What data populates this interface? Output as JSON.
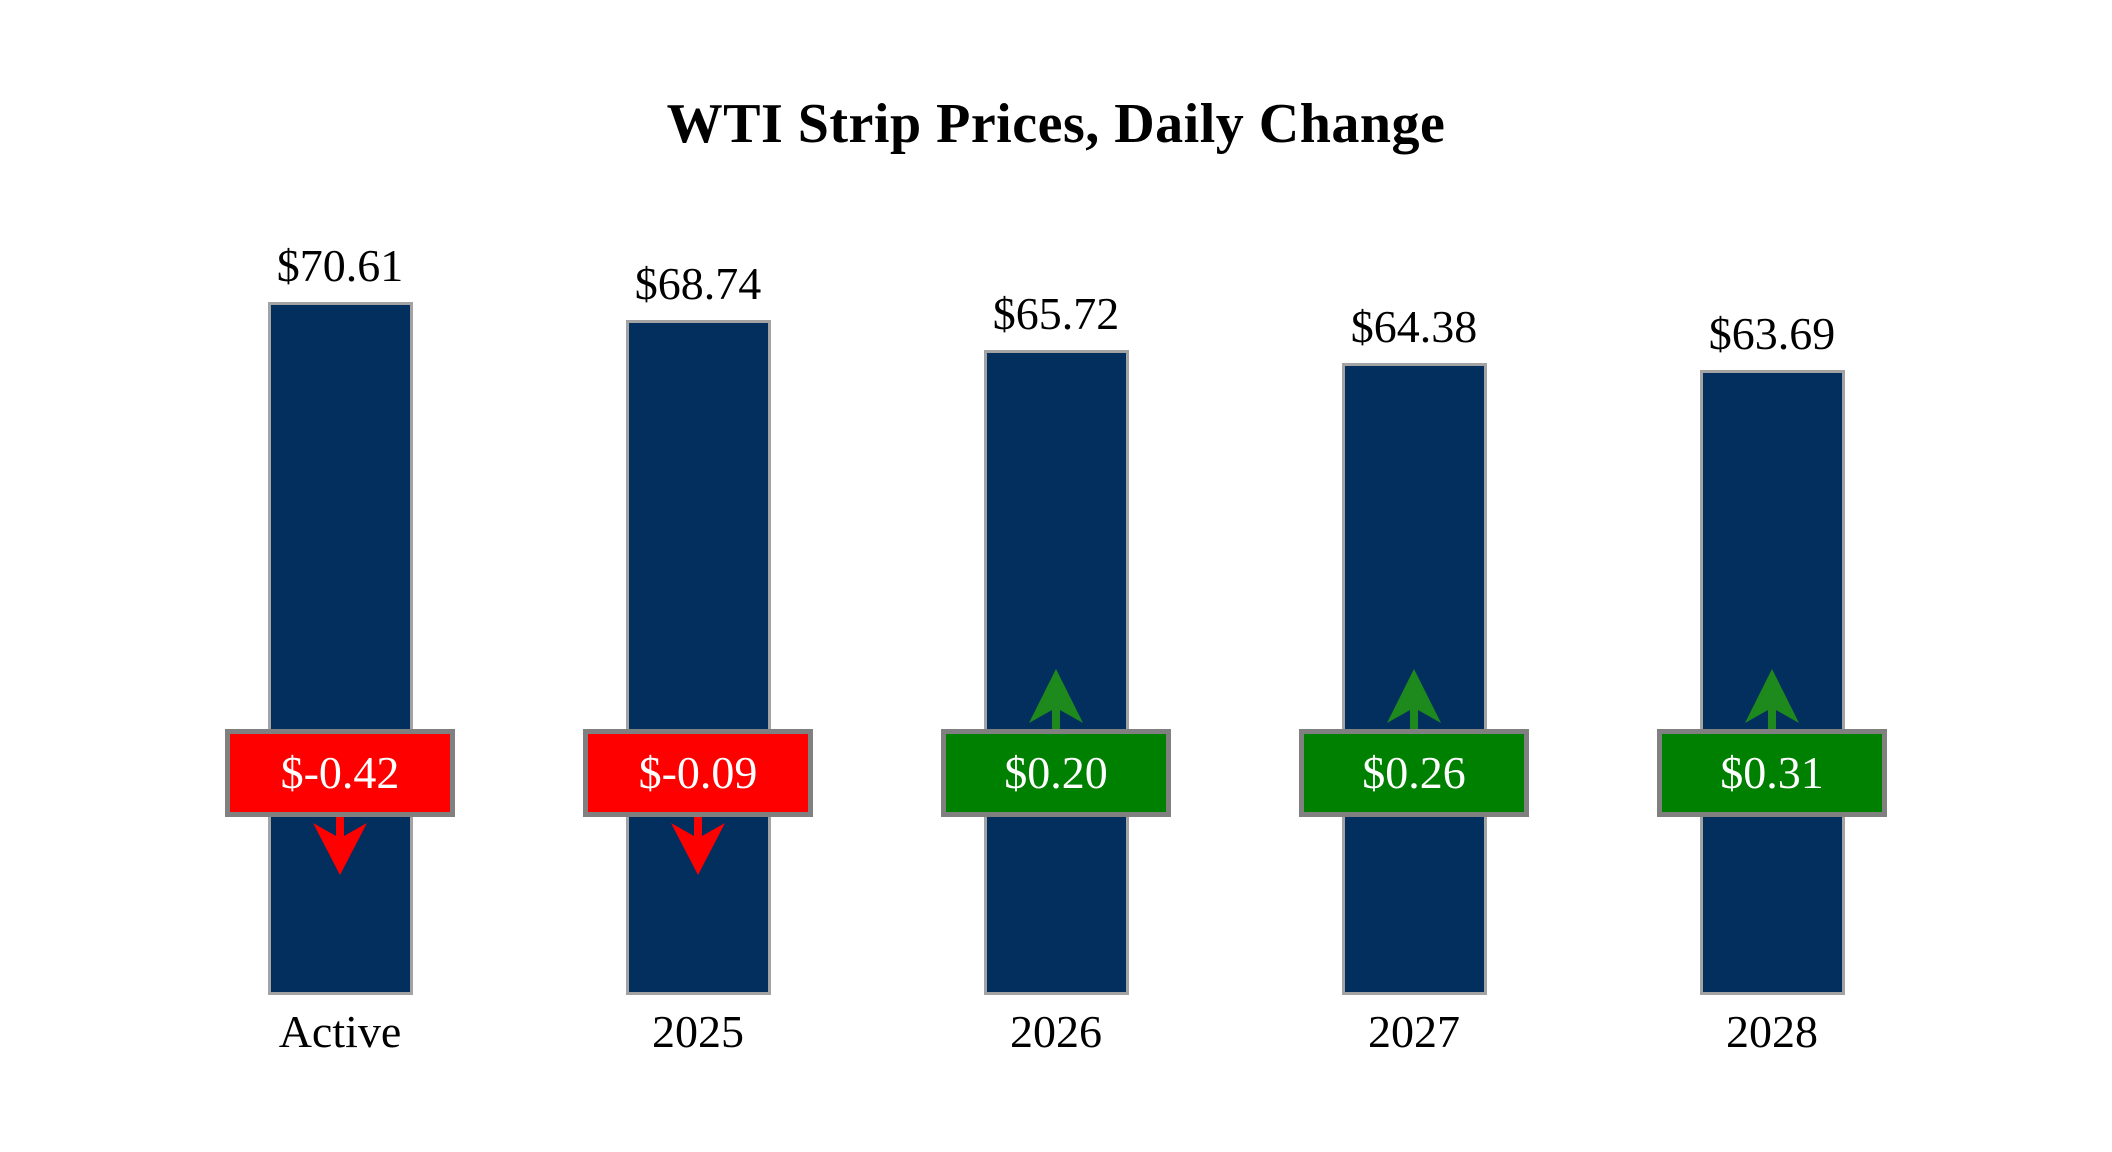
{
  "page": {
    "background": "#FFFFFF"
  },
  "chart_data": {
    "type": "bar",
    "title": "WTI Strip Prices, Daily Change",
    "categories": [
      "Active",
      "2025",
      "2026",
      "2027",
      "2028"
    ],
    "series": [
      {
        "name": "WTI Strip Price",
        "values": [
          70.61,
          68.74,
          65.72,
          64.38,
          63.69
        ]
      },
      {
        "name": "Daily Change",
        "values": [
          -0.42,
          -0.09,
          0.2,
          0.26,
          0.31
        ]
      }
    ],
    "ylim": [
      0,
      75
    ],
    "grid": false,
    "legend_position": "none",
    "xlabel": "",
    "ylabel": "",
    "bars": [
      {
        "category": "Active",
        "price": 70.61,
        "price_label": "$70.61",
        "change": -0.42,
        "change_label": "$-0.42",
        "direction": "down"
      },
      {
        "category": "2025",
        "price": 68.74,
        "price_label": "$68.74",
        "change": -0.09,
        "change_label": "$-0.09",
        "direction": "down"
      },
      {
        "category": "2026",
        "price": 65.72,
        "price_label": "$65.72",
        "change": 0.2,
        "change_label": "$0.20",
        "direction": "up"
      },
      {
        "category": "2027",
        "price": 64.38,
        "price_label": "$64.38",
        "change": 0.26,
        "change_label": "$0.26",
        "direction": "up"
      },
      {
        "category": "2028",
        "price": 63.69,
        "price_label": "$63.69",
        "change": 0.31,
        "change_label": "$0.31",
        "direction": "up"
      }
    ]
  },
  "colors": {
    "bar_fill": "#032F5E",
    "bar_border": "#A3A3A3",
    "negative_badge": "#FF0000",
    "positive_badge": "#008000",
    "arrow_down": "#FF0000",
    "arrow_up": "#1E8A1E",
    "badge_border": "#808080",
    "badge_text": "#FFFFFF",
    "label_text": "#000000"
  }
}
